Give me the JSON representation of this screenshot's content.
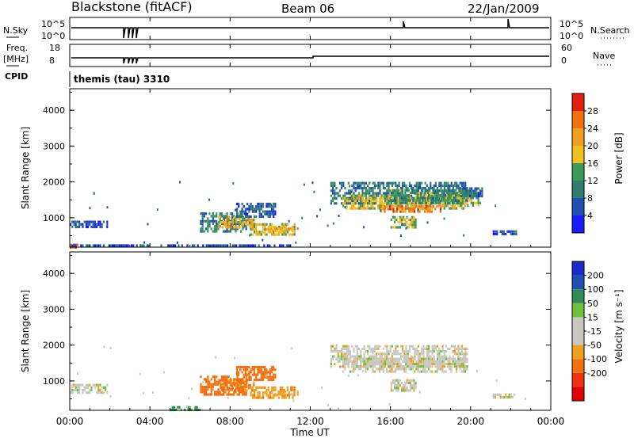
{
  "header": {
    "station": "Blackstone (fitACF)",
    "beam": "Beam 06",
    "date": "22/Jan/2009"
  },
  "top_panels": {
    "nsky": {
      "label": "N.Sky",
      "ticks_left": [
        "10^5",
        "10^0"
      ],
      "right_label": "N.Search",
      "ticks_right": [
        "10^5",
        "10^0"
      ]
    },
    "freq": {
      "label_line1": "Freq.",
      "label_line2": "[MHz]",
      "ticks_left": [
        "18",
        "8"
      ],
      "right_label": "Nave",
      "ticks_right": [
        "60",
        "0"
      ]
    },
    "cpid": {
      "label": "CPID",
      "value": "themis (tau) 3310"
    }
  },
  "time_axis": {
    "label": "Time UT",
    "ticks": [
      "00:00",
      "04:00",
      "08:00",
      "12:00",
      "16:00",
      "20:00",
      "00:00"
    ]
  },
  "colors": {
    "power_scale": [
      "#1a1aff",
      "#1f4fb0",
      "#2e7d6e",
      "#3a9a5a",
      "#f0c020",
      "#f0a020",
      "#f07010",
      "#e02010"
    ],
    "velocity_scale": [
      "#e00000",
      "#f03010",
      "#f07010",
      "#f0a020",
      "#c8c8c0",
      "#c8c8c0",
      "#70c040",
      "#2e8b57",
      "#1f4fb0",
      "#1a2acc"
    ]
  },
  "chart_data": [
    {
      "type": "heatmap",
      "title": "",
      "xlabel": "Time UT",
      "ylabel": "Slant Range [km]",
      "x_ticks": [
        "00:00",
        "04:00",
        "08:00",
        "12:00",
        "16:00",
        "20:00",
        "00:00"
      ],
      "xlim": [
        0,
        24
      ],
      "y_ticks": [
        "1000",
        "2000",
        "3000",
        "4000"
      ],
      "ylim": [
        180,
        4600
      ],
      "colorbar": {
        "label": "Power [dB]",
        "ticks": [
          "4",
          "8",
          "12",
          "16",
          "20",
          "24",
          "28"
        ],
        "range": [
          0,
          32
        ]
      },
      "regions": [
        {
          "t": [
            0.0,
            1.9
          ],
          "r": [
            720,
            920
          ],
          "value": 6
        },
        {
          "t": [
            0.0,
            0.4
          ],
          "r": [
            200,
            280
          ],
          "value": 28
        },
        {
          "t": [
            0.0,
            11.0
          ],
          "r": [
            200,
            260
          ],
          "value": 5
        },
        {
          "t": [
            6.5,
            8.8
          ],
          "r": [
            650,
            1150
          ],
          "value": 10
        },
        {
          "t": [
            7.4,
            9.2
          ],
          "r": [
            750,
            1050
          ],
          "value": 20
        },
        {
          "t": [
            8.3,
            10.3
          ],
          "r": [
            1050,
            1420
          ],
          "value": 7
        },
        {
          "t": [
            9.0,
            11.2
          ],
          "r": [
            550,
            850
          ],
          "value": 18
        },
        {
          "t": [
            10.2,
            11.4
          ],
          "r": [
            600,
            730
          ],
          "value": 22
        },
        {
          "t": [
            13.0,
            19.8
          ],
          "r": [
            1400,
            2000
          ],
          "value": 9
        },
        {
          "t": [
            13.6,
            19.8
          ],
          "r": [
            1250,
            1650
          ],
          "value": 18
        },
        {
          "t": [
            15.5,
            18.5
          ],
          "r": [
            1150,
            1350
          ],
          "value": 24
        },
        {
          "t": [
            16.0,
            19.8
          ],
          "r": [
            1400,
            1800
          ],
          "value": 12
        },
        {
          "t": [
            16.0,
            17.3
          ],
          "r": [
            750,
            1050
          ],
          "value": 16
        },
        {
          "t": [
            19.3,
            20.5
          ],
          "r": [
            1350,
            1800
          ],
          "value": 16
        },
        {
          "t": [
            19.4,
            20.6
          ],
          "r": [
            1600,
            1850
          ],
          "value": 8
        },
        {
          "t": [
            21.1,
            22.3
          ],
          "r": [
            550,
            650
          ],
          "value": 5
        }
      ]
    },
    {
      "type": "heatmap",
      "title": "",
      "xlabel": "Time UT",
      "ylabel": "Slant Range [km]",
      "x_ticks": [
        "00:00",
        "04:00",
        "08:00",
        "12:00",
        "16:00",
        "20:00",
        "00:00"
      ],
      "xlim": [
        0,
        24
      ],
      "y_ticks": [
        "1000",
        "2000",
        "3000",
        "4000"
      ],
      "ylim": [
        180,
        4600
      ],
      "colorbar": {
        "label": "Velocity [m s⁻¹]",
        "ticks": [
          "200",
          "100",
          "50",
          "15",
          "-15",
          "-50",
          "-100",
          "-200"
        ],
        "range": [
          -250,
          250
        ]
      },
      "regions": [
        {
          "t": [
            0.0,
            1.9
          ],
          "r": [
            650,
            920
          ],
          "value": 0
        },
        {
          "t": [
            6.5,
            8.8
          ],
          "r": [
            650,
            1150
          ],
          "value": -80
        },
        {
          "t": [
            7.4,
            9.2
          ],
          "r": [
            750,
            1050
          ],
          "value": -60
        },
        {
          "t": [
            8.3,
            10.3
          ],
          "r": [
            1050,
            1420
          ],
          "value": -70
        },
        {
          "t": [
            9.0,
            11.2
          ],
          "r": [
            550,
            850
          ],
          "value": -40
        },
        {
          "t": [
            10.2,
            11.4
          ],
          "r": [
            600,
            730
          ],
          "value": -30
        },
        {
          "t": [
            5.0,
            6.5
          ],
          "r": [
            200,
            300
          ],
          "value": 60
        },
        {
          "t": [
            13.0,
            19.8
          ],
          "r": [
            1400,
            2000
          ],
          "value": 0
        },
        {
          "t": [
            13.6,
            19.8
          ],
          "r": [
            1250,
            1650
          ],
          "value": 0
        },
        {
          "t": [
            16.0,
            17.3
          ],
          "r": [
            750,
            1050
          ],
          "value": 0
        },
        {
          "t": [
            21.1,
            22.3
          ],
          "r": [
            550,
            650
          ],
          "value": 0
        }
      ]
    }
  ]
}
